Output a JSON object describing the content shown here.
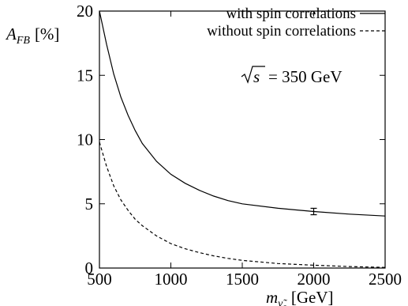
{
  "chart_data": {
    "type": "line",
    "title": "",
    "xlabel": "m",
    "xlabel_sub": "ν̃",
    "xlabel_sub2": "e",
    "xlabel_unit": "[GeV]",
    "ylabel": "A",
    "ylabel_sub": "FB",
    "ylabel_unit": "[%]",
    "xlim": [
      500,
      2500
    ],
    "ylim": [
      0,
      20
    ],
    "xticks": [
      "500",
      "1000",
      "1500",
      "2000",
      "2500"
    ],
    "yticks": [
      "0",
      "5",
      "10",
      "15",
      "20"
    ],
    "legend_position": "top-right",
    "annotation": "= 350 GeV",
    "annotation_sqrt": "s",
    "series": [
      {
        "name": "with spin correlations",
        "style": "solid",
        "x": [
          500,
          550,
          600,
          650,
          700,
          750,
          800,
          900,
          1000,
          1100,
          1200,
          1300,
          1400,
          1500,
          1750,
          2000,
          2250,
          2500
        ],
        "y": [
          20.0,
          17.4,
          15.1,
          13.3,
          11.9,
          10.7,
          9.7,
          8.3,
          7.3,
          6.6,
          6.05,
          5.6,
          5.25,
          5.0,
          4.65,
          4.4,
          4.2,
          4.05
        ]
      },
      {
        "name": "without spin correlations",
        "style": "dashed",
        "x": [
          500,
          550,
          600,
          650,
          700,
          750,
          800,
          900,
          1000,
          1100,
          1200,
          1300,
          1400,
          1500,
          1750,
          2000,
          2250,
          2500
        ],
        "y": [
          9.8,
          7.9,
          6.4,
          5.3,
          4.5,
          3.8,
          3.3,
          2.5,
          1.9,
          1.5,
          1.2,
          0.95,
          0.75,
          0.6,
          0.35,
          0.22,
          0.12,
          0.05
        ]
      }
    ],
    "error_bar": {
      "x": 2000,
      "y": 4.4,
      "yerr": 0.25
    }
  }
}
